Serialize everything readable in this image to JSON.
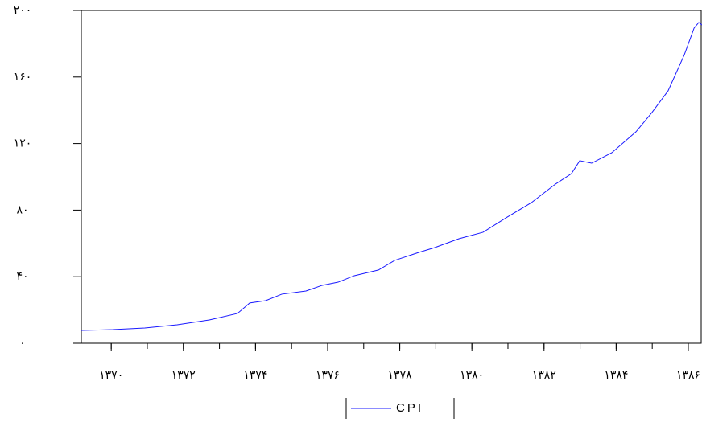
{
  "chart_data": {
    "type": "line",
    "x": [
      1369.17,
      1370.04,
      1370.93,
      1371.83,
      1372.72,
      1373.5,
      1373.84,
      1374.28,
      1374.73,
      1375.4,
      1375.85,
      1376.29,
      1376.74,
      1377.41,
      1377.86,
      1378.53,
      1378.97,
      1379.64,
      1380.31,
      1380.98,
      1381.65,
      1382.32,
      1382.76,
      1382.99,
      1383.32,
      1383.88,
      1384.55,
      1384.99,
      1385.44,
      1385.89,
      1386.16,
      1386.29,
      1386.38
    ],
    "series": [
      {
        "name": "CPI",
        "color": "#1a1aff",
        "values": [
          7.7,
          8.2,
          9.2,
          11.1,
          14.0,
          17.9,
          24.2,
          25.6,
          29.5,
          31.4,
          34.8,
          36.7,
          40.6,
          44.0,
          49.8,
          54.6,
          57.5,
          62.8,
          66.7,
          75.8,
          84.5,
          95.7,
          101.9,
          109.7,
          108.2,
          114.5,
          127.1,
          138.6,
          151.7,
          173.4,
          189.4,
          192.8,
          191.3
        ]
      }
    ],
    "xlim": [
      1369.17,
      1386.38
    ],
    "xticks": [
      {
        "value": 1370,
        "label": "۱۳۷۰"
      },
      {
        "value": 1372,
        "label": "۱۳۷۲"
      },
      {
        "value": 1374,
        "label": "۱۳۷۴"
      },
      {
        "value": 1376,
        "label": "۱۳۷۶"
      },
      {
        "value": 1378,
        "label": "۱۳۷۸"
      },
      {
        "value": 1380,
        "label": "۱۳۸۰"
      },
      {
        "value": 1382,
        "label": "۱۳۸۲"
      },
      {
        "value": 1384,
        "label": "۱۳۸۴"
      },
      {
        "value": 1386,
        "label": "۱۳۸۶"
      }
    ],
    "xminorticks": [
      1370,
      1371,
      1372,
      1373,
      1374,
      1375,
      1376,
      1377,
      1378,
      1379,
      1380,
      1381,
      1382,
      1383,
      1384,
      1385,
      1386
    ],
    "ylim": [
      0,
      200
    ],
    "yticks": [
      {
        "value": 0,
        "label": "۰"
      },
      {
        "value": 40,
        "label": "۴۰"
      },
      {
        "value": 80,
        "label": "۸۰"
      },
      {
        "value": 120,
        "label": "۱۲۰"
      },
      {
        "value": 160,
        "label": "۱۶۰"
      },
      {
        "value": 200,
        "label": "۲۰۰"
      }
    ],
    "legend": "bottom"
  }
}
